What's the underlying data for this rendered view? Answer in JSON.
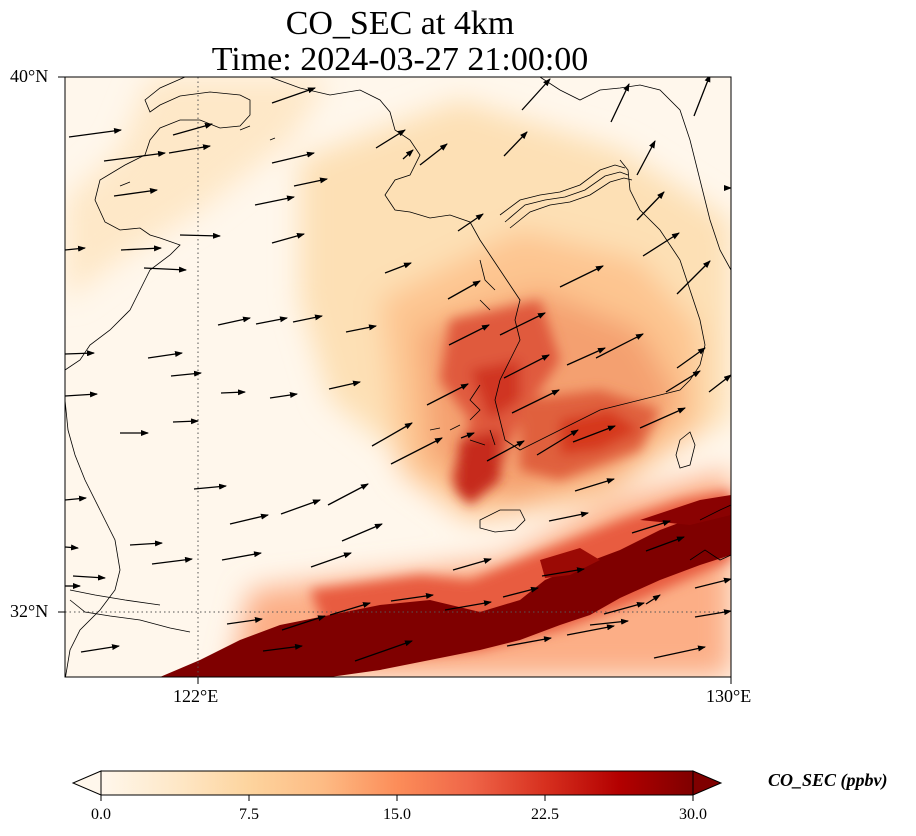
{
  "title": {
    "line1": "CO_SEC at 4km",
    "line2": "Time: 2024-03-27 21:00:00"
  },
  "map": {
    "lat_labels": [
      "40°N",
      "32°N"
    ],
    "lon_labels": [
      "122°E",
      "130°E"
    ],
    "extent": {
      "lon_min": 120,
      "lon_max": 130,
      "lat_min": 31,
      "lat_max": 40
    },
    "gridlines": {
      "lon": [
        122
      ],
      "lat": [
        32
      ],
      "style": "dotted"
    },
    "field": "CO_SEC",
    "vectors": "wind arrows, predominantly westerly to south-westerly"
  },
  "colorbar": {
    "label": "CO_SEC (ppbv)",
    "ticks": [
      "0.0",
      "7.5",
      "15.0",
      "22.5",
      "30.0"
    ],
    "colormap": "OrRd",
    "colors": [
      "#fff7ec",
      "#fee8c8",
      "#fdd49e",
      "#fdbb84",
      "#fc8d59",
      "#ef6548",
      "#d7301f",
      "#b30000",
      "#7f0000"
    ]
  }
}
